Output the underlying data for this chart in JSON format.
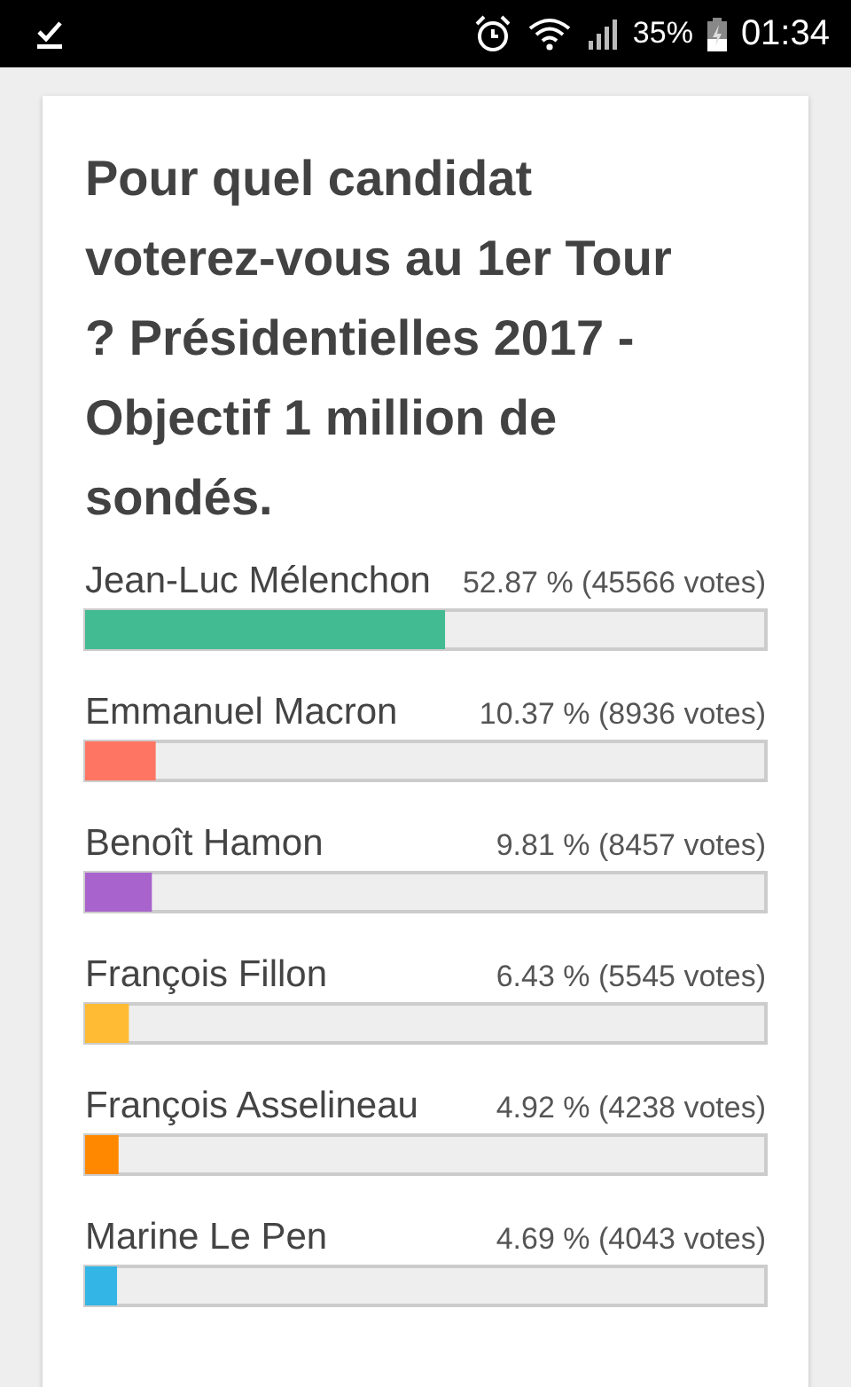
{
  "chart_data": {
    "type": "bar",
    "orientation": "horizontal",
    "title": "Pour quel candidat voterez-vous au 1er Tour ? Présidentielles 2017 - Objectif 1 million de sondés.",
    "categories": [
      "Jean-Luc Mélenchon",
      "Emmanuel Macron",
      "Benoît Hamon",
      "François Fillon",
      "François Asselineau",
      "Marine Le Pen"
    ],
    "values": [
      52.87,
      10.37,
      9.81,
      6.43,
      4.92,
      4.69
    ],
    "colors": [
      "#42ba92",
      "#ff7563",
      "#a864cc",
      "#ffbb33",
      "#ff8800",
      "#33b5e5"
    ],
    "value_labels": [
      "52.87 % (45566 votes)",
      "10.37 % (8936 votes)",
      "9.81 % (8457 votes)",
      "6.43 % (5545 votes)",
      "4.92 % (4238 votes)",
      "4.69 % (4043 votes)"
    ],
    "xlim": [
      0,
      100
    ],
    "tick_labels": "y",
    "annotations": [
      "35%",
      "01:34"
    ]
  }
}
